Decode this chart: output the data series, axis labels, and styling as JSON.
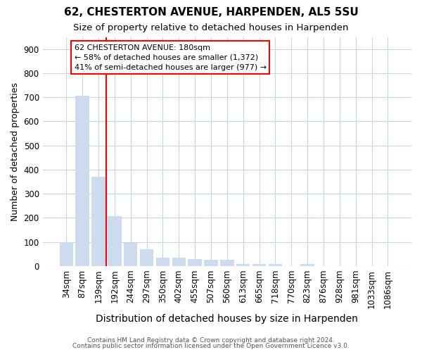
{
  "title": "62, CHESTERTON AVENUE, HARPENDEN, AL5 5SU",
  "subtitle": "Size of property relative to detached houses in Harpenden",
  "xlabel": "Distribution of detached houses by size in Harpenden",
  "ylabel": "Number of detached properties",
  "categories": [
    "34sqm",
    "87sqm",
    "139sqm",
    "192sqm",
    "244sqm",
    "297sqm",
    "350sqm",
    "402sqm",
    "455sqm",
    "507sqm",
    "560sqm",
    "613sqm",
    "665sqm",
    "718sqm",
    "770sqm",
    "823sqm",
    "876sqm",
    "928sqm",
    "981sqm",
    "1033sqm",
    "1086sqm"
  ],
  "values": [
    100,
    707,
    370,
    208,
    95,
    70,
    35,
    35,
    30,
    25,
    25,
    10,
    10,
    10,
    0,
    10,
    0,
    0,
    0,
    0,
    0
  ],
  "bar_color": "#ccdcee",
  "redline_x": 2.5,
  "ylim": [
    0,
    950
  ],
  "yticks": [
    0,
    100,
    200,
    300,
    400,
    500,
    600,
    700,
    800,
    900
  ],
  "annotation_lines": [
    "62 CHESTERTON AVENUE: 180sqm",
    "← 58% of detached houses are smaller (1,372)",
    "41% of semi-detached houses are larger (977) →"
  ],
  "footer_line1": "Contains HM Land Registry data © Crown copyright and database right 2024.",
  "footer_line2": "Contains public sector information licensed under the Open Government Licence v3.0.",
  "background_color": "#ffffff",
  "grid_color": "#c8d4e4",
  "title_fontsize": 11,
  "subtitle_fontsize": 9.5,
  "xlabel_fontsize": 10,
  "ylabel_fontsize": 9,
  "tick_fontsize": 8.5,
  "annotation_fontsize": 8,
  "footer_fontsize": 6.5
}
